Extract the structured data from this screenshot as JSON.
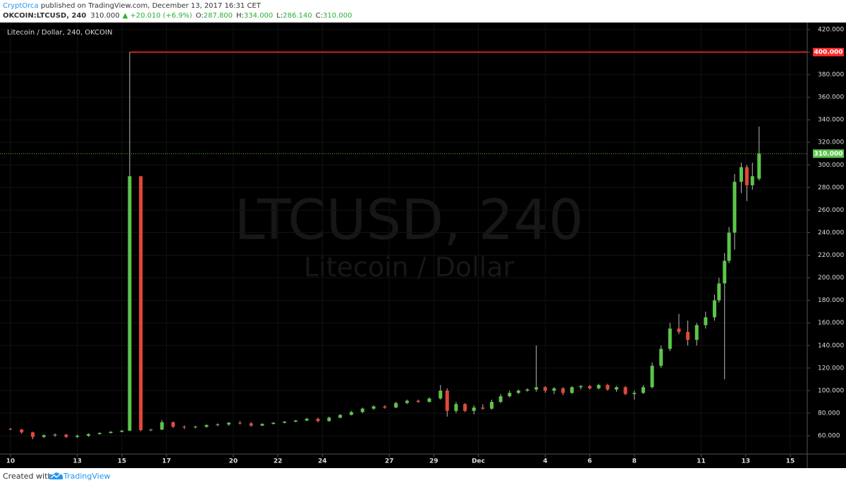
{
  "header": {
    "author": "CryptOrca",
    "published": " published on TradingView.com, December 13, 2017 16:31 CET",
    "symbol": "OKCOIN:LTCUSD, 240",
    "last": "310.000",
    "arrow": "▲",
    "change": "+20.010 (+6.9%)",
    "ohlc": [
      {
        "label": "O:",
        "value": "287.800"
      },
      {
        "label": "H:",
        "value": "334.000"
      },
      {
        "label": "L:",
        "value": "286.140"
      },
      {
        "label": "C:",
        "value": "310.000"
      }
    ]
  },
  "chart_data": {
    "type": "candlestick",
    "title": "Litecoin / Dollar, 240, OKCOIN",
    "watermark": [
      "LTCUSD, 240",
      "Litecoin / Dollar"
    ],
    "up_color": "#5cc54a",
    "down_color": "#e8453c",
    "grid": true,
    "xlim": [
      -0.47,
      35.76
    ],
    "ylim": [
      43.8,
      426.2
    ],
    "xticks": [
      {
        "value": 0,
        "label": "10"
      },
      {
        "value": 3,
        "label": "13"
      },
      {
        "value": 5,
        "label": "15"
      },
      {
        "value": 7,
        "label": "17"
      },
      {
        "value": 10,
        "label": "20"
      },
      {
        "value": 12,
        "label": "22"
      },
      {
        "value": 14,
        "label": "24"
      },
      {
        "value": 17,
        "label": "27"
      },
      {
        "value": 19,
        "label": "29"
      },
      {
        "value": 21,
        "label": "Dec"
      },
      {
        "value": 24,
        "label": "4"
      },
      {
        "value": 26,
        "label": "6"
      },
      {
        "value": 28,
        "label": "8"
      },
      {
        "value": 31,
        "label": "11"
      },
      {
        "value": 33,
        "label": "13"
      },
      {
        "value": 35,
        "label": "15"
      }
    ],
    "yticks": [
      {
        "value": 60,
        "label": "60.000"
      },
      {
        "value": 80,
        "label": "80.000"
      },
      {
        "value": 100,
        "label": "100.000"
      },
      {
        "value": 120,
        "label": "120.000"
      },
      {
        "value": 140,
        "label": "140.000"
      },
      {
        "value": 160,
        "label": "160.000"
      },
      {
        "value": 180,
        "label": "180.000"
      },
      {
        "value": 200,
        "label": "200.000"
      },
      {
        "value": 220,
        "label": "220.000"
      },
      {
        "value": 240,
        "label": "240.000"
      },
      {
        "value": 260,
        "label": "260.000"
      },
      {
        "value": 280,
        "label": "280.000"
      },
      {
        "value": 300,
        "label": "300.000"
      },
      {
        "value": 320,
        "label": "320.000"
      },
      {
        "value": 340,
        "label": "340.000"
      },
      {
        "value": 360,
        "label": "360.000"
      },
      {
        "value": 380,
        "label": "380.000"
      },
      {
        "value": 400,
        "label": "400.000"
      },
      {
        "value": 420,
        "label": "420.000"
      }
    ],
    "hline": {
      "value": 400,
      "label": "400.000",
      "color": "#ff2a2a"
    },
    "last_price": {
      "value": 310,
      "label": "310.000",
      "color": "#5cc54a"
    },
    "x": [
      0,
      0.5,
      1,
      1.5,
      2,
      2.5,
      3,
      3.5,
      4,
      4.5,
      5,
      5.35,
      5.85,
      6.3,
      6.8,
      7.3,
      7.8,
      8.3,
      8.8,
      9.3,
      9.8,
      10.3,
      10.8,
      11.3,
      11.8,
      12.3,
      12.8,
      13.3,
      13.8,
      14.3,
      14.8,
      15.3,
      15.8,
      16.3,
      16.8,
      17.3,
      17.8,
      18.3,
      18.8,
      19.3,
      19.6,
      20,
      20.4,
      20.8,
      21.2,
      21.6,
      22,
      22.4,
      22.8,
      23.2,
      23.6,
      24,
      24.4,
      24.8,
      25.2,
      25.6,
      26,
      26.4,
      26.8,
      27.2,
      27.6,
      28,
      28.4,
      28.8,
      29.2,
      29.6,
      30,
      30.4,
      30.8,
      31.2,
      31.6,
      31.8,
      32.05,
      32.25,
      32.5,
      32.8,
      33.05,
      33.3,
      33.6
    ],
    "open": [
      66,
      65.5,
      63,
      59,
      60.5,
      61,
      59,
      60,
      61.5,
      62.5,
      63.5,
      64.5,
      290,
      65,
      65.5,
      72,
      68,
      67.5,
      68,
      69.5,
      70,
      71.5,
      71,
      69,
      70.5,
      71.5,
      72.5,
      73.5,
      75,
      73,
      76,
      78.5,
      81,
      84,
      86,
      85,
      89,
      91,
      90,
      93,
      100,
      82,
      88,
      82,
      85,
      84,
      90,
      95,
      98,
      100,
      101,
      103,
      100,
      102,
      98,
      103,
      104,
      102,
      105,
      101,
      103,
      97,
      98,
      103,
      122,
      137,
      155,
      152,
      145,
      158,
      165,
      180,
      195,
      215,
      240,
      285,
      298,
      282,
      287.8
    ],
    "high": [
      67,
      66,
      63.5,
      61,
      62,
      61.5,
      61,
      62,
      63,
      64,
      65,
      400,
      290,
      66,
      74,
      72.5,
      69,
      69,
      70,
      71,
      72,
      73,
      72,
      71,
      72,
      73,
      74,
      76,
      76,
      77,
      79,
      82,
      85,
      87,
      87,
      90,
      92,
      92,
      94,
      105,
      102,
      90,
      89,
      87,
      88,
      92,
      97,
      100,
      101,
      102,
      140,
      104,
      103,
      103,
      104,
      105,
      105,
      106,
      106,
      104,
      104,
      100,
      105,
      125,
      140,
      160,
      168,
      162,
      160,
      170,
      185,
      200,
      222,
      245,
      292,
      302,
      300,
      302,
      334
    ],
    "low": [
      65,
      62,
      57,
      58,
      59,
      58,
      58,
      59,
      61,
      62,
      63,
      64,
      64,
      64,
      65,
      67,
      66,
      66.5,
      67,
      68.5,
      69,
      70,
      68,
      68.5,
      70,
      71,
      72,
      73,
      72,
      72.5,
      75.5,
      78,
      80,
      83,
      84,
      84.5,
      88,
      89,
      89.5,
      92,
      77,
      80,
      81,
      79,
      83,
      83,
      89,
      94,
      97,
      99,
      99,
      98,
      97,
      96,
      97,
      101,
      101,
      101,
      100,
      99,
      96,
      92,
      97,
      102,
      120,
      135,
      150,
      140,
      140,
      155,
      162,
      178,
      110,
      213,
      225,
      275,
      268,
      278,
      286.14
    ],
    "close": [
      65.5,
      63,
      59,
      60.5,
      61,
      59,
      60,
      61.5,
      62.5,
      63.5,
      64.5,
      290,
      65,
      65.5,
      72,
      68,
      67.5,
      68,
      69.5,
      70,
      71.5,
      71,
      69,
      70.5,
      71.5,
      72.5,
      73.5,
      75,
      73,
      76,
      78.5,
      81,
      84,
      86,
      85,
      89,
      91,
      90,
      93,
      100,
      82,
      88,
      82,
      85,
      84,
      90,
      95,
      98,
      100,
      101,
      103,
      100,
      102,
      98,
      103,
      104,
      102,
      105,
      101,
      103,
      97,
      98,
      103,
      122,
      137,
      155,
      152,
      145,
      158,
      165,
      180,
      195,
      215,
      240,
      285,
      298,
      282,
      290,
      310
    ]
  },
  "footer": {
    "created": "Created with",
    "brand": "TradingView"
  }
}
